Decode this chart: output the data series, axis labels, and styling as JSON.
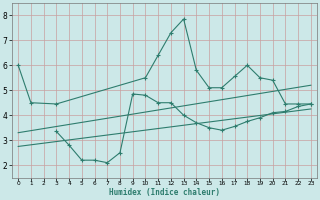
{
  "bg_color": "#cce8e8",
  "grid_color": "#aacfcf",
  "line_color": "#2e7d6e",
  "xlabel": "Humidex (Indice chaleur)",
  "xlim": [
    -0.5,
    23.5
  ],
  "ylim": [
    1.5,
    8.5
  ],
  "yticks": [
    2,
    3,
    4,
    5,
    6,
    7,
    8
  ],
  "xticks": [
    0,
    1,
    2,
    3,
    4,
    5,
    6,
    7,
    8,
    9,
    10,
    11,
    12,
    13,
    14,
    15,
    16,
    17,
    18,
    19,
    20,
    21,
    22,
    23
  ],
  "line1_x": [
    0,
    1,
    3,
    10,
    11,
    12,
    13,
    14,
    15,
    16,
    17,
    18,
    19,
    20,
    21,
    22,
    23
  ],
  "line1_y": [
    6.0,
    4.5,
    4.45,
    5.5,
    6.4,
    7.3,
    7.85,
    5.8,
    5.1,
    5.1,
    5.55,
    6.0,
    5.5,
    5.4,
    4.45,
    4.45,
    4.45
  ],
  "line2_x": [
    3,
    4,
    5,
    6,
    7,
    8,
    9,
    10,
    11,
    12,
    13,
    14,
    15,
    16,
    17,
    18,
    19,
    20,
    21,
    22,
    23
  ],
  "line2_y": [
    3.35,
    2.8,
    2.2,
    2.2,
    2.1,
    2.5,
    4.85,
    4.8,
    4.5,
    4.5,
    4.0,
    3.7,
    3.5,
    3.4,
    3.55,
    3.75,
    3.9,
    4.1,
    4.15,
    4.35,
    4.45
  ],
  "trend1_x": [
    0,
    23
  ],
  "trend1_y": [
    3.3,
    5.2
  ],
  "trend2_x": [
    0,
    23
  ],
  "trend2_y": [
    2.75,
    4.25
  ]
}
